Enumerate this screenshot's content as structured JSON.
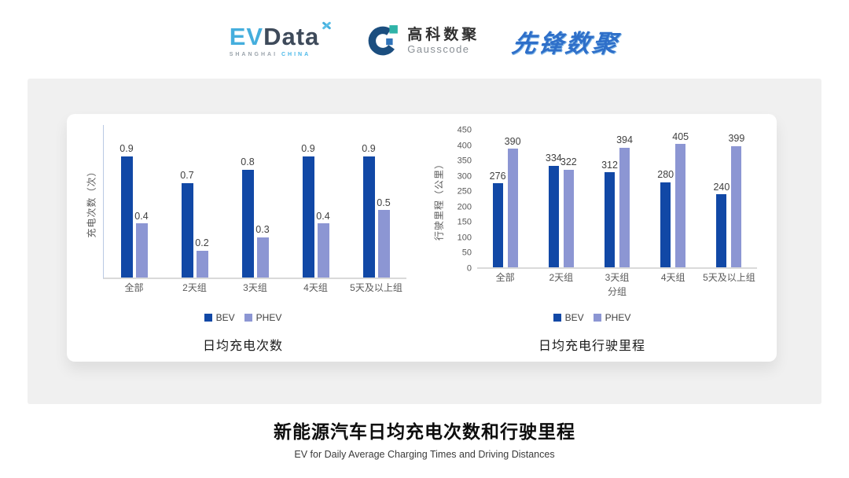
{
  "header": {
    "evdata_logo": {
      "ev": "EV",
      "data": "Data",
      "sub_left": "SHANGHAI",
      "sub_right": "CHINA"
    },
    "gausscode_logo": {
      "name_cn": "高科数聚",
      "name_en": "Gausscode"
    },
    "pioneer_logo": {
      "text": "先锋数聚"
    }
  },
  "colors": {
    "bev": "#1148A6",
    "phev": "#8C96D3",
    "panel_bg": "#F0F0F0",
    "baseline": "#DADADA",
    "evdata_cyan": "#45AEDD",
    "evdata_dark": "#3E4A5A",
    "gauss_navy": "#1B4E7F",
    "gauss_teal": "#2FB3A8",
    "gauss_blue": "#2E72B8",
    "pioneer_blue": "#2E6FC9"
  },
  "chart_data": [
    {
      "type": "bar",
      "title": "日均充电次数",
      "ylabel": "充电次数（次）",
      "xlabel": "",
      "categories": [
        "全部",
        "2天组",
        "3天组",
        "4天组",
        "5天及以上组"
      ],
      "series": [
        {
          "name": "BEV",
          "color": "#1148A6",
          "values": [
            0.9,
            0.7,
            0.8,
            0.9,
            0.9
          ]
        },
        {
          "name": "PHEV",
          "color": "#8C96D3",
          "values": [
            0.4,
            0.2,
            0.3,
            0.4,
            0.5
          ]
        }
      ],
      "ylim": [
        0,
        1.13
      ],
      "yticks": [],
      "grid": false,
      "legend_position": "bottom",
      "value_labels": true
    },
    {
      "type": "bar",
      "title": "日均充电行驶里程",
      "ylabel": "行驶里程（公里）",
      "xlabel": "分组",
      "categories": [
        "全部",
        "2天组",
        "3天组",
        "4天组",
        "5天及以上组"
      ],
      "series": [
        {
          "name": "BEV",
          "color": "#1148A6",
          "values": [
            276,
            334,
            312,
            280,
            240
          ]
        },
        {
          "name": "PHEV",
          "color": "#8C96D3",
          "values": [
            390,
            322,
            394,
            405,
            399
          ]
        }
      ],
      "ylim": [
        0,
        450
      ],
      "yticks": [
        0,
        50,
        100,
        150,
        200,
        250,
        300,
        350,
        400,
        450
      ],
      "grid": false,
      "legend_position": "bottom",
      "value_labels": true
    }
  ],
  "footer": {
    "title": "新能源汽车日均充电次数和行驶里程",
    "subtitle": "EV for Daily Average Charging Times and Driving Distances"
  }
}
